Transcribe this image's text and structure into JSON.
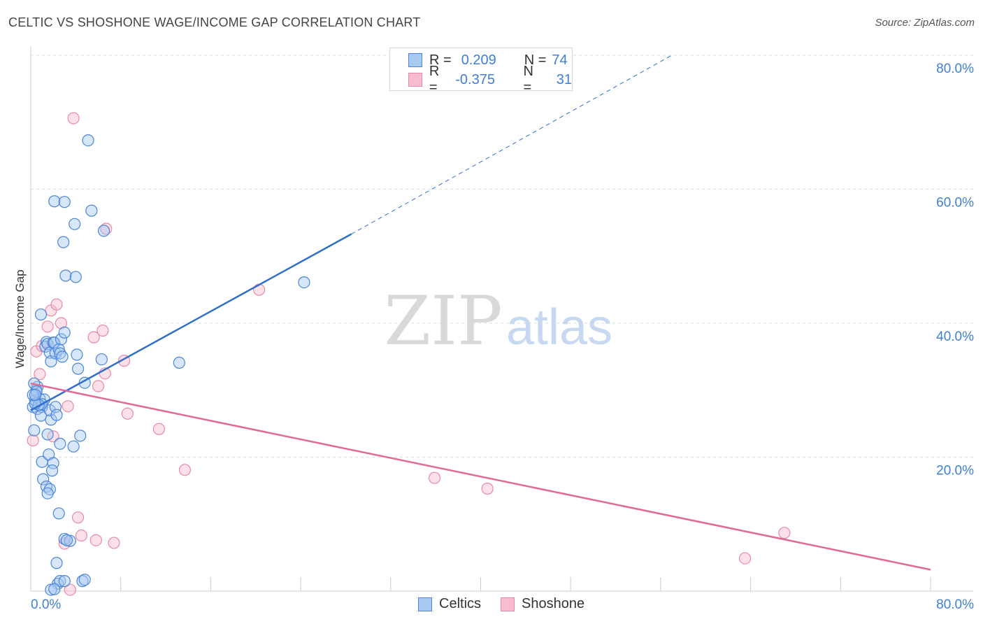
{
  "header": {
    "title": "CELTIC VS SHOSHONE WAGE/INCOME GAP CORRELATION CHART",
    "source": "Source: ZipAtlas.com"
  },
  "legend": {
    "row1": {
      "r_label": "R =",
      "r_value": "0.209",
      "n_label": "N =",
      "n_value": "74"
    },
    "row2": {
      "r_label": "R =",
      "r_value": "-0.375",
      "n_label": "N =",
      "n_value": "31"
    }
  },
  "bottom_legend": {
    "celtics": "Celtics",
    "shoshone": "Shoshone"
  },
  "colors": {
    "celtics_fill": "#a9c8f2",
    "celtics_stroke": "#4a86d8",
    "celtics_line": "#2f6fce",
    "shoshone_fill": "#f8bccf",
    "shoshone_stroke": "#e88aa8",
    "shoshone_line": "#e06a94",
    "axis_label": "#3f7fd6",
    "grid": "#dddddd"
  },
  "chart_data": {
    "type": "scatter",
    "title": "CELTIC VS SHOSHONE WAGE/INCOME GAP CORRELATION CHART",
    "xlabel": "",
    "ylabel": "Wage/Income Gap",
    "xlim": [
      0,
      80
    ],
    "ylim": [
      0,
      80
    ],
    "x_tick_labels": [
      "0.0%",
      "80.0%"
    ],
    "y_tick_labels": [
      "20.0%",
      "40.0%",
      "60.0%",
      "80.0%"
    ],
    "y_ticks": [
      20,
      40,
      60,
      80
    ],
    "watermark": {
      "zip": "ZIP",
      "atlas": "atlas"
    },
    "series": [
      {
        "name": "Celtics",
        "r": 0.209,
        "n": 74,
        "trend": {
          "x0": 0,
          "y0": 27,
          "x1": 28.5,
          "y1": 53.3,
          "dash_x1": 57,
          "dash_y1": 80
        },
        "points": [
          [
            0.3,
            24
          ],
          [
            0.2,
            27.5
          ],
          [
            0.4,
            28.5
          ],
          [
            0.5,
            30
          ],
          [
            0.6,
            30.5
          ],
          [
            0.3,
            31
          ],
          [
            0.6,
            27.2
          ],
          [
            0.8,
            28.7
          ],
          [
            1.0,
            27.5
          ],
          [
            1.2,
            28.6
          ],
          [
            0.9,
            26.2
          ],
          [
            1.0,
            27.9
          ],
          [
            1.5,
            23.4
          ],
          [
            1.8,
            25.6
          ],
          [
            1.7,
            27
          ],
          [
            2.2,
            27.5
          ],
          [
            2.3,
            26.3
          ],
          [
            2.6,
            22
          ],
          [
            3.8,
            21.6
          ],
          [
            4.4,
            23.2
          ],
          [
            1.4,
            37.2
          ],
          [
            1.3,
            36.5
          ],
          [
            1.5,
            36.9
          ],
          [
            1.7,
            35.6
          ],
          [
            1.8,
            34.3
          ],
          [
            2.0,
            37.1
          ],
          [
            2.1,
            37.1
          ],
          [
            2.2,
            35.5
          ],
          [
            2.5,
            36.1
          ],
          [
            2.6,
            35.5
          ],
          [
            2.7,
            37.6
          ],
          [
            2.8,
            35.0
          ],
          [
            3.0,
            38.6
          ],
          [
            4.1,
            35.3
          ],
          [
            4.2,
            33.2
          ],
          [
            4.8,
            31.1
          ],
          [
            6.3,
            34.6
          ],
          [
            13.2,
            34.1
          ],
          [
            24.3,
            46.1
          ],
          [
            0.9,
            41.3
          ],
          [
            3.1,
            47.1
          ],
          [
            4.0,
            46.9
          ],
          [
            2.9,
            52.1
          ],
          [
            3.9,
            54.8
          ],
          [
            2.1,
            58.2
          ],
          [
            3.0,
            58.1
          ],
          [
            5.4,
            56.8
          ],
          [
            6.5,
            53.8
          ],
          [
            5.1,
            67.3
          ],
          [
            1.0,
            19.3
          ],
          [
            1.6,
            20.4
          ],
          [
            2.0,
            19.1
          ],
          [
            1.9,
            18.0
          ],
          [
            1.1,
            16.7
          ],
          [
            1.4,
            15.6
          ],
          [
            1.7,
            15.2
          ],
          [
            1.5,
            14.6
          ],
          [
            2.5,
            11.6
          ],
          [
            3.0,
            7.8
          ],
          [
            3.5,
            7.5
          ],
          [
            3.2,
            7.6
          ],
          [
            2.3,
            4.2
          ],
          [
            2.4,
            1.1
          ],
          [
            2.6,
            1.5
          ],
          [
            3.0,
            1.5
          ],
          [
            4.6,
            1.5
          ],
          [
            4.8,
            1.7
          ],
          [
            1.8,
            0.2
          ],
          [
            2.1,
            0.3
          ],
          [
            0.5,
            29.8
          ],
          [
            0.7,
            27.8
          ],
          [
            0.4,
            28.0
          ],
          [
            0.2,
            29.3
          ],
          [
            0.4,
            29.3
          ]
        ]
      },
      {
        "name": "Shoshone",
        "r": -0.375,
        "n": 31,
        "trend": {
          "x0": 0,
          "y0": 31,
          "x1": 80,
          "y1": 3.2
        },
        "points": [
          [
            0.2,
            22.5
          ],
          [
            0.5,
            35.8
          ],
          [
            0.8,
            32.4
          ],
          [
            1.0,
            36.6
          ],
          [
            1.5,
            39.5
          ],
          [
            1.8,
            41.9
          ],
          [
            2.3,
            42.8
          ],
          [
            2.7,
            40.0
          ],
          [
            3.3,
            27.6
          ],
          [
            2.0,
            23.1
          ],
          [
            3.8,
            70.6
          ],
          [
            6.7,
            54.1
          ],
          [
            5.6,
            37.9
          ],
          [
            6.4,
            38.9
          ],
          [
            6.0,
            30.6
          ],
          [
            6.6,
            32.5
          ],
          [
            8.3,
            34.4
          ],
          [
            8.6,
            26.5
          ],
          [
            11.4,
            24.2
          ],
          [
            13.7,
            18.1
          ],
          [
            20.3,
            45.0
          ],
          [
            4.2,
            11.0
          ],
          [
            4.5,
            8.3
          ],
          [
            5.8,
            7.6
          ],
          [
            7.4,
            7.2
          ],
          [
            3.0,
            7.1
          ],
          [
            3.5,
            0.2
          ],
          [
            35.9,
            16.9
          ],
          [
            40.6,
            15.3
          ],
          [
            63.5,
            4.9
          ],
          [
            67.0,
            8.7
          ]
        ]
      }
    ]
  }
}
